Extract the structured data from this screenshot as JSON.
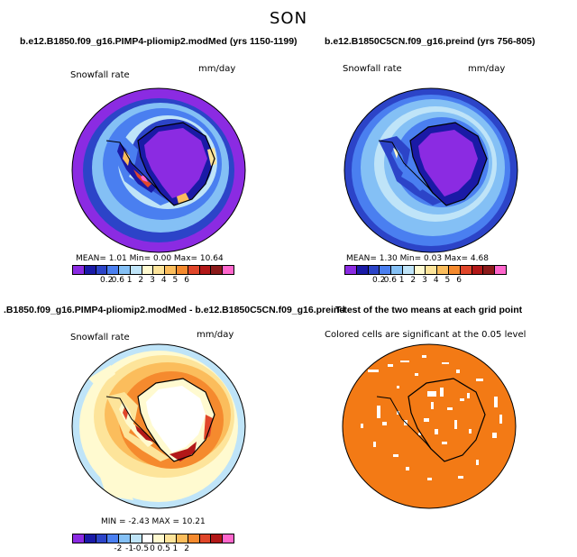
{
  "figure_title": "SON",
  "panels": [
    {
      "title": "b.e12.B1850.f09_g16.PIMP4-pliomip2.modMed (yrs 1150-1199)",
      "variable": "Snowfall rate",
      "units": "mm/day",
      "stats": "MEAN=    1.01   Min=    0.00   Max=   10.64",
      "colorbar": {
        "colors": [
          "#8b2be2",
          "#1a1aa6",
          "#2c44c8",
          "#4a7ff0",
          "#84c0f5",
          "#bfe4f8",
          "#fffad0",
          "#fde49a",
          "#fbbd5c",
          "#f58a2e",
          "#e0462a",
          "#b21818",
          "#8b1a1a",
          "#ff66cc"
        ],
        "labels": [
          "0.2",
          "0.6",
          "1",
          "2",
          "3",
          "4",
          "5",
          "6"
        ]
      }
    },
    {
      "title": "b.e12.B1850C5CN.f09_g16.preind (yrs 756-805)",
      "variable": "Snowfall rate",
      "units": "mm/day",
      "stats": "MEAN=    1.30   Min=    0.03   Max=    4.68",
      "colorbar": {
        "colors": [
          "#8b2be2",
          "#1a1aa6",
          "#2c44c8",
          "#4a7ff0",
          "#84c0f5",
          "#bfe4f8",
          "#fffad0",
          "#fde49a",
          "#fbbd5c",
          "#f58a2e",
          "#e0462a",
          "#b21818",
          "#8b1a1a",
          "#ff66cc"
        ],
        "labels": [
          "0.2",
          "0.6",
          "1",
          "2",
          "3",
          "4",
          "5",
          "6"
        ]
      }
    },
    {
      "title": ".B1850.f09_g16.PIMP4-pliomip2.modMed - b.e12.B1850C5CN.f09_g16.preind",
      "variable": "Snowfall rate",
      "units": "mm/day",
      "stats": "MIN =  -2.43  MAX =   10.21",
      "colorbar": {
        "colors": [
          "#8b2be2",
          "#1a1aa6",
          "#2c44c8",
          "#4a7ff0",
          "#84c0f5",
          "#bfe4f8",
          "#ffffff",
          "#fffad0",
          "#fde49a",
          "#fbbd5c",
          "#f58a2e",
          "#e0462a",
          "#b21818",
          "#ff66cc"
        ],
        "labels": [
          "-2",
          "-1",
          "-0.5",
          "0",
          "0.5",
          "1",
          "2"
        ]
      }
    },
    {
      "title": "T-test of the two means at each grid point",
      "note": "Colored cells are significant at the 0.05 level",
      "fill_color": "#f37a15"
    }
  ]
}
